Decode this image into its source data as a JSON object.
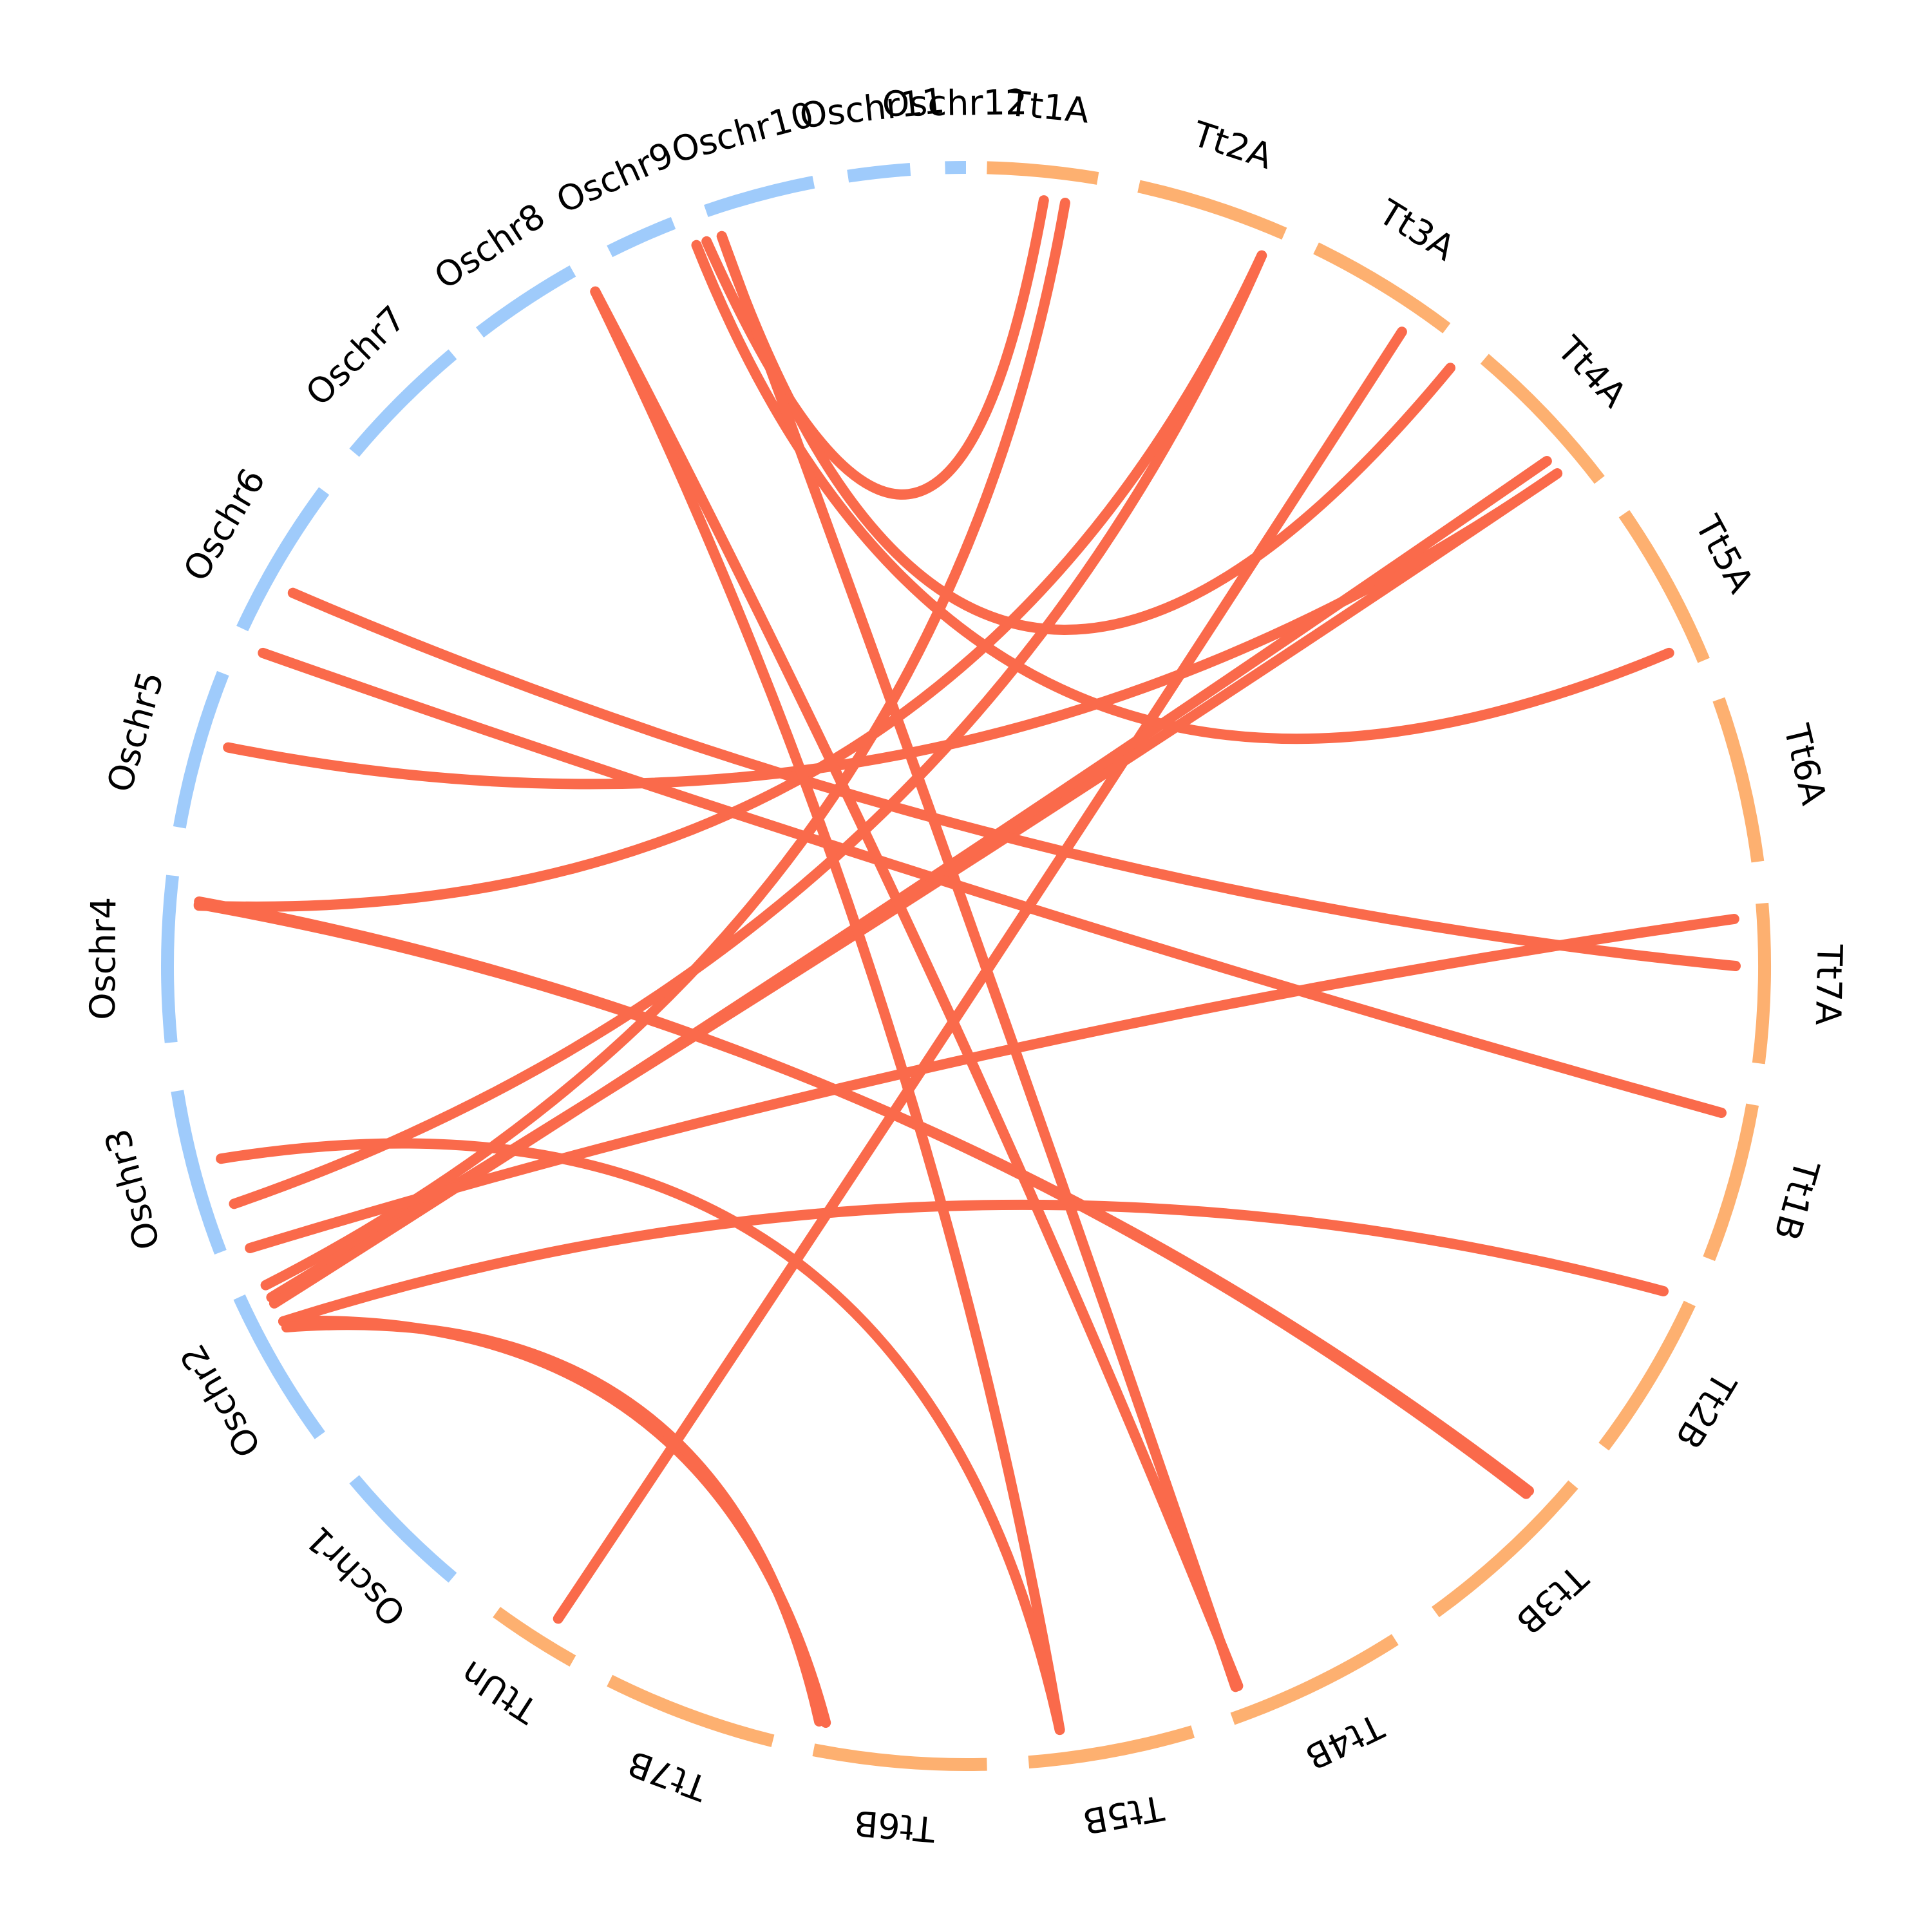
{
  "colors": {
    "oryza": "#9fcbfb",
    "triticum": "#fdb070",
    "link": "#fa6a4b"
  },
  "segments": [
    {
      "id": "Tt1A",
      "label": "Tt1A",
      "genome": "triticum"
    },
    {
      "id": "Tt2A",
      "label": "Tt2A",
      "genome": "triticum"
    },
    {
      "id": "Tt3A",
      "label": "Tt3A",
      "genome": "triticum"
    },
    {
      "id": "Tt4A",
      "label": "Tt4A",
      "genome": "triticum"
    },
    {
      "id": "Tt5A",
      "label": "Tt5A",
      "genome": "triticum"
    },
    {
      "id": "Tt6A",
      "label": "Tt6A",
      "genome": "triticum"
    },
    {
      "id": "Tt7A",
      "label": "Tt7A",
      "genome": "triticum"
    },
    {
      "id": "Tt1B",
      "label": "Tt1B",
      "genome": "triticum"
    },
    {
      "id": "Tt2B",
      "label": "Tt2B",
      "genome": "triticum"
    },
    {
      "id": "Tt3B",
      "label": "Tt3B",
      "genome": "triticum"
    },
    {
      "id": "Tt4B",
      "label": "Tt4B",
      "genome": "triticum"
    },
    {
      "id": "Tt5B",
      "label": "Tt5B",
      "genome": "triticum"
    },
    {
      "id": "Tt6B",
      "label": "Tt6B",
      "genome": "triticum"
    },
    {
      "id": "Tt7B",
      "label": "Tt7B",
      "genome": "triticum"
    },
    {
      "id": "TtUn",
      "label": "TtUn",
      "genome": "triticum"
    },
    {
      "id": "Oschr1",
      "label": "Oschr1",
      "genome": "oryza"
    },
    {
      "id": "Oschr2",
      "label": "Oschr2",
      "genome": "oryza"
    },
    {
      "id": "Oschr3",
      "label": "Oschr3",
      "genome": "oryza"
    },
    {
      "id": "Oschr4",
      "label": "Oschr4",
      "genome": "oryza"
    },
    {
      "id": "Oschr5",
      "label": "Oschr5",
      "genome": "oryza"
    },
    {
      "id": "Oschr6",
      "label": "Oschr6",
      "genome": "oryza"
    },
    {
      "id": "Oschr7",
      "label": "Oschr7",
      "genome": "oryza"
    },
    {
      "id": "Oschr8",
      "label": "Oschr8",
      "genome": "oryza"
    },
    {
      "id": "Oschr9",
      "label": "Oschr9",
      "genome": "oryza"
    },
    {
      "id": "Oschr10",
      "label": "Oschr10",
      "genome": "oryza"
    },
    {
      "id": "Oschr11",
      "label": "Oschr11",
      "genome": "oryza"
    },
    {
      "id": "Oschr12",
      "label": "Oschr12",
      "genome": "oryza"
    }
  ],
  "links": [
    {
      "from": "Tt1A",
      "to": "Oschr11"
    },
    {
      "from": "Tt1A",
      "to": "Oschr2"
    },
    {
      "from": "Tt2A",
      "to": "Oschr3"
    },
    {
      "from": "Tt2A",
      "to": "Oschr4"
    },
    {
      "from": "Tt3A",
      "to": "Oschr1"
    },
    {
      "from": "Tt3A",
      "to": "Oschr11"
    },
    {
      "from": "Tt4A",
      "to": "Oschr2"
    },
    {
      "from": "Tt4A",
      "to": "Oschr5"
    },
    {
      "from": "Tt4A",
      "to": "Oschr2"
    },
    {
      "from": "Tt5A",
      "to": "Oschr9"
    },
    {
      "from": "Tt6A",
      "to": "Oschr2"
    },
    {
      "from": "Tt6A",
      "to": "Oschr6"
    },
    {
      "from": "Tt7A",
      "to": "Oschr6"
    },
    {
      "from": "Tt1B",
      "to": "Oschr2"
    },
    {
      "from": "Tt2B",
      "to": "Oschr4"
    },
    {
      "from": "Tt2B",
      "to": "Oschr4"
    },
    {
      "from": "Tt4B",
      "to": "Oschr10"
    },
    {
      "from": "Tt4B",
      "to": "Oschr11"
    },
    {
      "from": "Tt5B",
      "to": "Oschr9"
    },
    {
      "from": "Tt5B",
      "to": "Oschr3"
    },
    {
      "from": "Tt6B",
      "to": "Oschr2"
    },
    {
      "from": "Tt6B",
      "to": "Oschr2"
    }
  ]
}
